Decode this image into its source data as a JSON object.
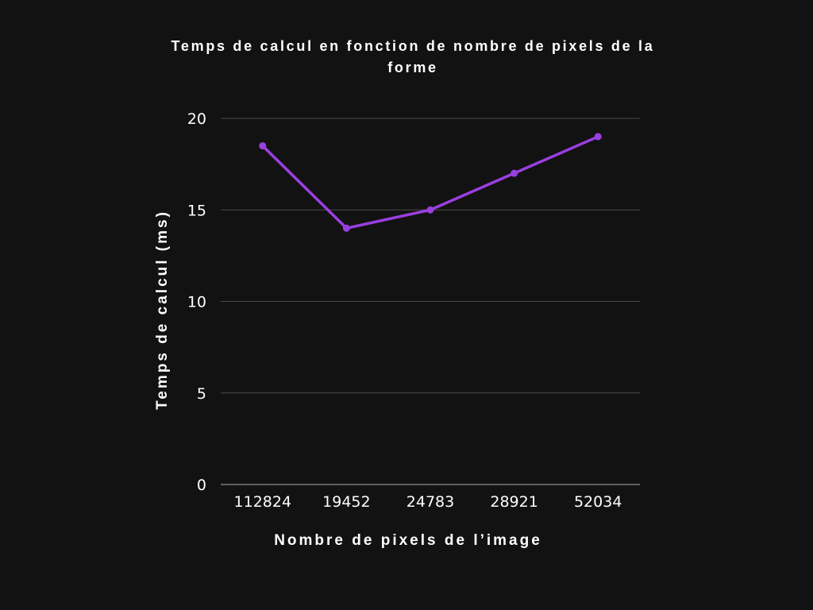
{
  "chart_data": {
    "type": "line",
    "title": "Temps de calcul en fonction de nombre de pixels de la forme",
    "xlabel": "Nombre de pixels de l’image",
    "ylabel": "Temps de calcul (ms)",
    "categories": [
      "112824",
      "19452",
      "24783",
      "28921",
      "52034"
    ],
    "series": [
      {
        "values": [
          18.5,
          14,
          15,
          17,
          19
        ]
      }
    ],
    "ylim": [
      0,
      20
    ],
    "yticks": [
      0,
      5,
      10,
      15,
      20
    ],
    "grid": true,
    "legend": "none",
    "colors": {
      "background": "#121212",
      "line": "#9a3fe0",
      "grid": "#4a4a4a",
      "axis": "#7a7a7a",
      "text": "#ffffff"
    }
  }
}
